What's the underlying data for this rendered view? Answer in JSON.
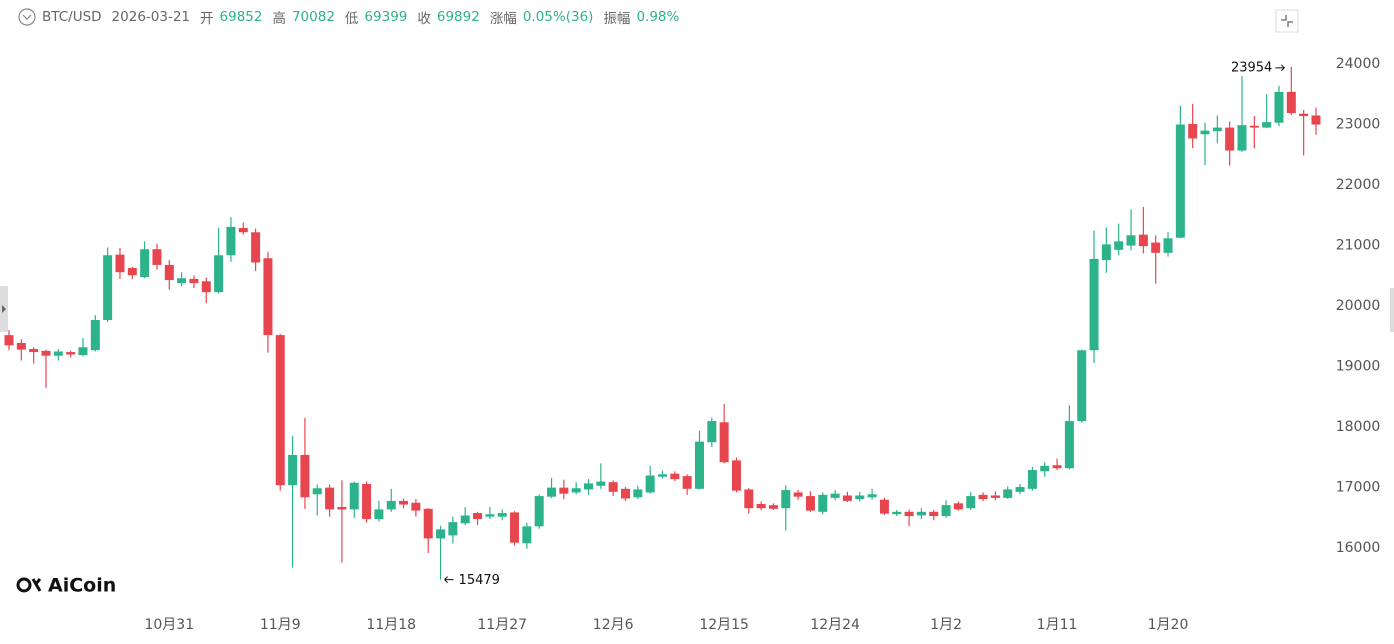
{
  "chart_data": {
    "type": "candlestick",
    "symbol": "BTC/USD",
    "date": "2026-03-21",
    "stats": [
      {
        "label": "开",
        "value": 69852
      },
      {
        "label": "高",
        "value": 70082
      },
      {
        "label": "低",
        "value": 69399
      },
      {
        "label": "收",
        "value": 69892
      },
      {
        "label": "涨幅",
        "value": "0.05%(36)"
      },
      {
        "label": "振幅",
        "value": "0.98%"
      }
    ],
    "watermark": "AiCoin",
    "max_label": 23954,
    "min_label": 15479,
    "up_color": "#2db38b",
    "down_color": "#e8464f",
    "ylim": [
      15060,
      24480
    ],
    "yticks": [
      16000,
      17000,
      18000,
      19000,
      20000,
      21000,
      22000,
      23000,
      24000
    ],
    "categories": [
      null,
      null,
      null,
      null,
      null,
      null,
      null,
      null,
      null,
      null,
      null,
      null,
      null,
      "10月31",
      null,
      null,
      null,
      null,
      null,
      null,
      null,
      null,
      "11月9",
      null,
      null,
      null,
      null,
      null,
      null,
      null,
      null,
      "11月18",
      null,
      null,
      null,
      null,
      null,
      null,
      null,
      null,
      "11月27",
      null,
      null,
      null,
      null,
      null,
      null,
      null,
      null,
      "12月6",
      null,
      null,
      null,
      null,
      null,
      null,
      null,
      null,
      "12月15",
      null,
      null,
      null,
      null,
      null,
      null,
      null,
      null,
      "12月24",
      null,
      null,
      null,
      null,
      null,
      null,
      null,
      null,
      "1月2",
      null,
      null,
      null,
      null,
      null,
      null,
      null,
      null,
      "1月11",
      null,
      null,
      null,
      null,
      null,
      null,
      null,
      null,
      "1月20",
      null,
      null,
      null,
      null,
      null,
      null,
      null,
      null,
      null,
      null,
      null,
      null
    ],
    "open": [
      19520,
      19390,
      19290,
      19260,
      19180,
      19240,
      19190,
      19270,
      19770,
      20850,
      20630,
      20480,
      20940,
      20680,
      20380,
      20450,
      20410,
      20230,
      20840,
      21290,
      21220,
      20790,
      19520,
      17040,
      17540,
      16890,
      17000,
      16680,
      16640,
      17060,
      16480,
      16640,
      16780,
      16750,
      16650,
      16160,
      16210,
      16410,
      16580,
      16520,
      16520,
      16590,
      16080,
      16360,
      16850,
      17000,
      16920,
      16970,
      17030,
      17090,
      16980,
      16840,
      16920,
      17180,
      17230,
      17190,
      16980,
      17750,
      18080,
      17450,
      16970,
      16730,
      16710,
      16660,
      16920,
      16860,
      16600,
      16830,
      16870,
      16810,
      16840,
      16800,
      16560,
      16600,
      16540,
      16600,
      16530,
      16740,
      16660,
      16880,
      16870,
      16830,
      16930,
      16980,
      17270,
      17370,
      17320,
      18100,
      19270,
      20760,
      20930,
      21000,
      21180,
      21050,
      20880,
      21130,
      23010,
      22840,
      22890,
      22950,
      22570,
      22980,
      22950,
      23030,
      23540,
      23180,
      23150
    ],
    "high": [
      19600,
      19450,
      19320,
      19280,
      19290,
      19260,
      19470,
      19850,
      20970,
      20960,
      20650,
      21070,
      21030,
      20760,
      20560,
      20510,
      20470,
      21290,
      21470,
      21380,
      21280,
      20900,
      19540,
      17850,
      18150,
      17050,
      17050,
      17120,
      17100,
      17100,
      16780,
      16980,
      16820,
      16810,
      16660,
      16370,
      16520,
      16680,
      16600,
      16680,
      16640,
      16610,
      16420,
      16890,
      17160,
      17130,
      17090,
      17140,
      17400,
      17120,
      17010,
      17030,
      17360,
      17280,
      17270,
      17220,
      17940,
      18160,
      18380,
      17500,
      16990,
      16770,
      16740,
      17040,
      16960,
      16940,
      16920,
      16960,
      16930,
      16930,
      16980,
      16830,
      16630,
      16640,
      16660,
      16630,
      16790,
      16770,
      16930,
      16920,
      16940,
      17020,
      17060,
      17340,
      17420,
      17480,
      18360,
      19280,
      21250,
      21300,
      21360,
      21600,
      21640,
      21170,
      21220,
      23310,
      23340,
      23030,
      23150,
      23050,
      23800,
      23140,
      23500,
      23640,
      23954,
      23240,
      23280
    ],
    "low": [
      19270,
      19100,
      19050,
      18650,
      19100,
      19150,
      19170,
      19250,
      19740,
      20450,
      20450,
      20460,
      20600,
      20270,
      20330,
      20300,
      20050,
      20210,
      20730,
      21180,
      20580,
      19230,
      16950,
      15680,
      16650,
      16540,
      16520,
      15760,
      16500,
      16420,
      16440,
      16600,
      16660,
      16520,
      15920,
      15479,
      16080,
      16380,
      16380,
      16480,
      16460,
      16040,
      15990,
      16320,
      16830,
      16810,
      16890,
      16880,
      16980,
      16860,
      16780,
      16810,
      16900,
      17150,
      17110,
      16880,
      16970,
      17670,
      17400,
      16920,
      16570,
      16630,
      16630,
      16290,
      16800,
      16600,
      16560,
      16790,
      16760,
      16770,
      16800,
      16550,
      16530,
      16360,
      16480,
      16460,
      16500,
      16620,
      16630,
      16780,
      16790,
      16810,
      16890,
      16950,
      17180,
      17290,
      17300,
      18070,
      19060,
      20550,
      20840,
      20920,
      20870,
      20370,
      20820,
      21120,
      22610,
      22330,
      22690,
      22320,
      22550,
      22610,
      22940,
      22970,
      23160,
      22490,
      22830
    ],
    "close": [
      19350,
      19280,
      19240,
      19180,
      19250,
      19200,
      19320,
      19770,
      20840,
      20560,
      20510,
      20940,
      20680,
      20430,
      20460,
      20380,
      20230,
      20840,
      21310,
      21220,
      20720,
      19520,
      17040,
      17540,
      16840,
      16990,
      16640,
      16640,
      17080,
      16480,
      16640,
      16780,
      16720,
      16620,
      16160,
      16310,
      16430,
      16540,
      16480,
      16560,
      16580,
      16090,
      16360,
      16860,
      17000,
      16900,
      16990,
      17070,
      17100,
      16930,
      16820,
      16970,
      17200,
      17220,
      17140,
      16980,
      17760,
      18100,
      17420,
      16950,
      16660,
      16660,
      16650,
      16960,
      16850,
      16620,
      16880,
      16900,
      16780,
      16870,
      16890,
      16570,
      16600,
      16530,
      16600,
      16530,
      16710,
      16640,
      16860,
      16810,
      16830,
      16970,
      17010,
      17290,
      17360,
      17320,
      18100,
      19270,
      20780,
      21020,
      21070,
      21170,
      20990,
      20880,
      21120,
      23000,
      22770,
      22900,
      22950,
      22570,
      22990,
      22950,
      23040,
      23540,
      23190,
      23140,
      23000
    ]
  }
}
